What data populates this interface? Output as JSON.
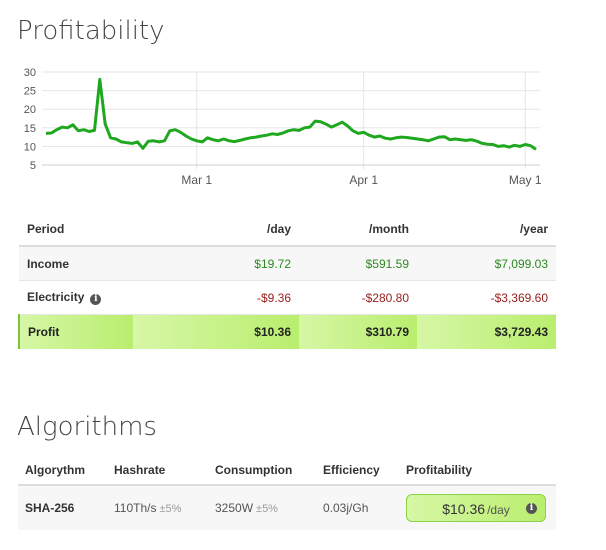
{
  "profitability": {
    "title": "Profitability",
    "columns": [
      "Period",
      "/day",
      "/month",
      "/year"
    ],
    "rows": {
      "income": {
        "label": "Income",
        "day": "$19.72",
        "month": "$591.59",
        "year": "$7,099.03"
      },
      "electricity": {
        "label": "Electricity",
        "day": "-$9.36",
        "month": "-$280.80",
        "year": "-$3,369.60"
      },
      "profit": {
        "label": "Profit",
        "day": "$10.36",
        "month": "$310.79",
        "year": "$3,729.43"
      }
    },
    "info_icon": "info-icon"
  },
  "algorithms": {
    "title": "Algorithms",
    "columns": [
      "Algorythm",
      "Hashrate",
      "Consumption",
      "Efficiency",
      "Profitability"
    ],
    "row": {
      "name": "SHA-256",
      "hashrate": "110Th/s",
      "hashrate_tol": "±5%",
      "consumption": "3250W",
      "consumption_tol": "±5%",
      "efficiency": "0.03j/Gh",
      "profit_value": "$10.36",
      "profit_unit": "/day"
    }
  },
  "colors": {
    "line": "#1fa81f",
    "income": "#2a8a1e",
    "expense": "#9b1c1c",
    "efficiency": "#3a8bbb"
  },
  "chart_data": {
    "type": "line",
    "title": "",
    "xlabel": "",
    "ylabel": "",
    "ylim": [
      5,
      30
    ],
    "yticks": [
      5,
      10,
      15,
      20,
      25,
      30
    ],
    "grid": true,
    "x_tick_labels": [
      {
        "label": "Mar 1",
        "day": 28
      },
      {
        "label": "Apr 1",
        "day": 59
      },
      {
        "label": "May 1",
        "day": 89
      }
    ],
    "x_start_date": "2018-02-01",
    "series": [
      {
        "values": [
          13.5,
          13.6,
          14.5,
          15.2,
          15,
          15.8,
          14.2,
          14.5,
          14,
          14.3,
          28,
          16,
          12.3,
          12,
          11.2,
          11,
          10.8,
          11.2,
          9.5,
          11.4,
          11.5,
          11.2,
          11.5,
          14.2,
          14.5,
          13.8,
          12.8,
          12,
          11.5,
          11.2,
          12.3,
          11.8,
          11.5,
          12,
          11.5,
          11.3,
          11.6,
          12,
          12.3,
          12.5,
          12.8,
          13,
          13.4,
          13.2,
          13.6,
          14.2,
          14.5,
          14.3,
          15,
          15.2,
          16.8,
          16.6,
          16,
          15.2,
          15.8,
          16.5,
          15.5,
          14.2,
          13.5,
          13.8,
          13,
          12.5,
          12.8,
          12.2,
          12,
          12.3,
          12.5,
          12.4,
          12.2,
          12,
          11.8,
          11.5,
          12,
          12.5,
          12.6,
          11.8,
          12,
          11.8,
          11.6,
          11.8,
          11.4,
          10.8,
          10.6,
          10.5,
          10,
          10.2,
          9.8,
          10.3,
          10,
          10.5,
          10.2,
          9.2
        ]
      }
    ]
  }
}
